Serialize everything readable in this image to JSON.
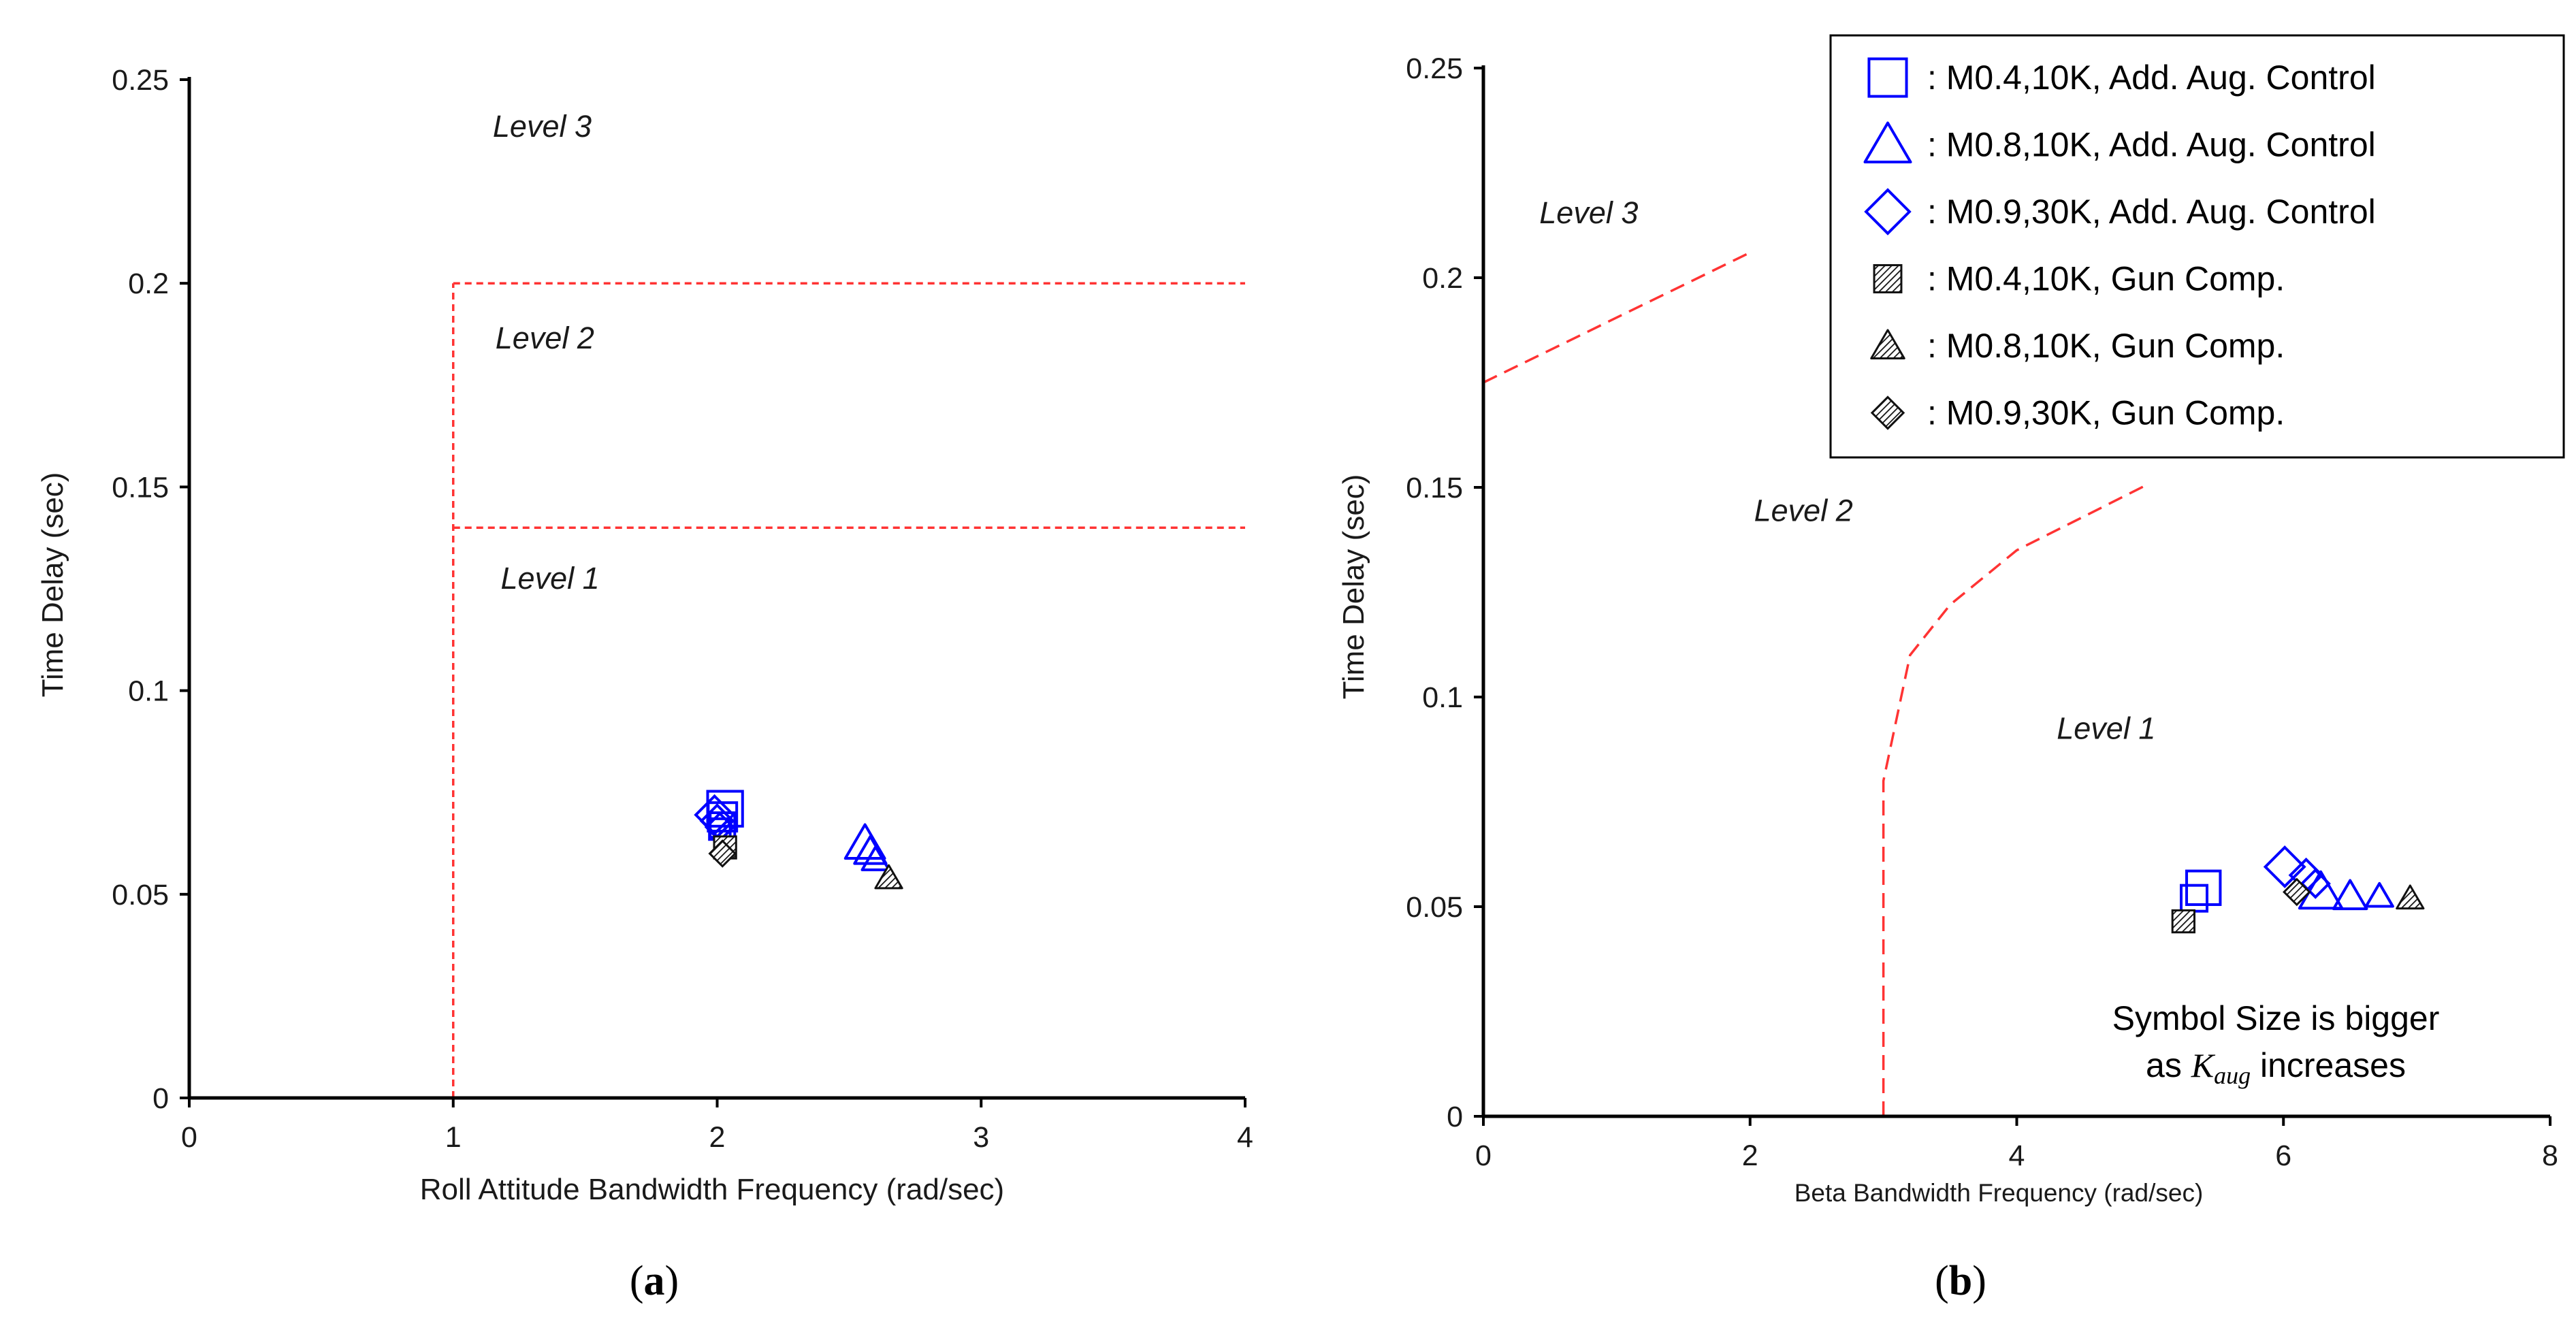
{
  "colors": {
    "aug": "#0000ff",
    "gun": "#111111",
    "boundary": "#ff3333",
    "axis": "#000000"
  },
  "chart_data": [
    {
      "type": "scatter",
      "panel": "a",
      "caption_open": "(",
      "caption_label": "a",
      "caption_close": ")",
      "xlabel": "Roll Attitude Bandwidth Frequency (rad/sec)",
      "ylabel": "Time Delay (sec)",
      "xlim": [
        0,
        4
      ],
      "ylim": [
        0,
        0.25
      ],
      "xticks": [
        0,
        1,
        2,
        3,
        4
      ],
      "xtick_labels": [
        "0",
        "1",
        "2",
        "3",
        "4"
      ],
      "yticks": [
        0,
        0.05,
        0.1,
        0.15,
        0.2,
        0.25
      ],
      "ytick_labels": [
        "0",
        "0.05",
        "0.1",
        "0.15",
        "0.2",
        "0.25"
      ],
      "boundaries": [
        {
          "name": "level-boundary-vertical",
          "points": [
            [
              1,
              0
            ],
            [
              1,
              0.2
            ]
          ]
        },
        {
          "name": "level-2-3-boundary",
          "points": [
            [
              1,
              0.2
            ],
            [
              4,
              0.2
            ]
          ]
        },
        {
          "name": "level-1-2-boundary",
          "points": [
            [
              1,
              0.14
            ],
            [
              4,
              0.14
            ]
          ]
        }
      ],
      "level_labels": [
        {
          "text": "Level 3",
          "x": 1.15,
          "y": 0.236
        },
        {
          "text": "Level 2",
          "x": 1.16,
          "y": 0.184
        },
        {
          "text": "Level 1",
          "x": 1.18,
          "y": 0.125
        }
      ],
      "series": [
        {
          "name": "M0.4,10K, Add. Aug. Control",
          "marker": "square",
          "style": "aug",
          "points": [
            [
              2.03,
              0.071,
              1.35
            ],
            [
              2.02,
              0.069,
              1.1
            ],
            [
              2.02,
              0.067,
              0.95
            ],
            [
              2.01,
              0.066,
              0.8
            ]
          ]
        },
        {
          "name": "M0.8,10K, Add. Aug. Control",
          "marker": "triangle",
          "style": "aug",
          "points": [
            [
              2.56,
              0.0625,
              1.25
            ],
            [
              2.58,
              0.0605,
              1.0
            ],
            [
              2.6,
              0.0585,
              0.85
            ]
          ]
        },
        {
          "name": "M0.9,30K, Add. Aug. Control",
          "marker": "diamond",
          "style": "aug",
          "points": [
            [
              1.99,
              0.0695,
              1.25
            ],
            [
              2.0,
              0.068,
              1.05
            ],
            [
              2.01,
              0.0665,
              0.9
            ]
          ]
        },
        {
          "name": "M0.4,10K, Gun Comp.",
          "marker": "square",
          "style": "gun",
          "points": [
            [
              2.03,
              0.0615,
              0.85
            ]
          ]
        },
        {
          "name": "M0.8,10K, Gun Comp.",
          "marker": "triangle",
          "style": "gun",
          "points": [
            [
              2.65,
              0.054,
              0.85
            ]
          ]
        },
        {
          "name": "M0.9,30K, Gun Comp.",
          "marker": "diamond",
          "style": "gun",
          "points": [
            [
              2.02,
              0.06,
              0.85
            ]
          ]
        }
      ]
    },
    {
      "type": "scatter",
      "panel": "b",
      "caption_open": "(",
      "caption_label": "b",
      "caption_close": ")",
      "xlabel": "Beta Bandwidth Frequency (rad/sec)",
      "ylabel": "Time Delay (sec)",
      "xlim": [
        0,
        8
      ],
      "ylim": [
        0,
        0.25
      ],
      "xticks": [
        0,
        2,
        4,
        6,
        8
      ],
      "xtick_labels": [
        "0",
        "2",
        "4",
        "6",
        "8"
      ],
      "yticks": [
        0,
        0.05,
        0.1,
        0.15,
        0.2,
        0.25
      ],
      "ytick_labels": [
        "0",
        "0.05",
        "0.1",
        "0.15",
        "0.2",
        "0.25"
      ],
      "boundaries": [
        {
          "name": "level-2-3-boundary",
          "points": [
            [
              0,
              0.175
            ],
            [
              2,
              0.206
            ]
          ]
        },
        {
          "name": "level-1-2-boundary",
          "points": [
            [
              3,
              0
            ],
            [
              3,
              0.08
            ],
            [
              3.2,
              0.11
            ],
            [
              3.5,
              0.122
            ],
            [
              4,
              0.135
            ],
            [
              5,
              0.151
            ]
          ]
        }
      ],
      "level_labels": [
        {
          "text": "Level 3",
          "x": 0.42,
          "y": 0.213
        },
        {
          "text": "Level 2",
          "x": 2.03,
          "y": 0.142
        },
        {
          "text": "Level 1",
          "x": 4.3,
          "y": 0.09
        }
      ],
      "series": [
        {
          "name": "M0.4,10K, Add. Aug. Control",
          "marker": "square",
          "style": "aug",
          "points": [
            [
              5.4,
              0.0545,
              1.3
            ],
            [
              5.33,
              0.052,
              1.0
            ]
          ]
        },
        {
          "name": "M0.8,10K, Add. Aug. Control",
          "marker": "triangle",
          "style": "aug",
          "points": [
            [
              6.28,
              0.0535,
              1.35
            ],
            [
              6.5,
              0.0525,
              1.05
            ],
            [
              6.72,
              0.0525,
              0.85
            ]
          ]
        },
        {
          "name": "M0.9,30K, Add. Aug. Control",
          "marker": "diamond",
          "style": "aug",
          "points": [
            [
              6.01,
              0.0595,
              1.3
            ],
            [
              6.17,
              0.0575,
              1.05
            ],
            [
              6.24,
              0.0555,
              0.9
            ]
          ]
        },
        {
          "name": "M0.4,10K, Gun Comp.",
          "marker": "square",
          "style": "gun",
          "points": [
            [
              5.25,
              0.0465,
              0.85
            ]
          ]
        },
        {
          "name": "M0.8,10K, Gun Comp.",
          "marker": "triangle",
          "style": "gun",
          "points": [
            [
              6.95,
              0.052,
              0.85
            ]
          ]
        },
        {
          "name": "M0.9,30K, Gun Comp.",
          "marker": "diamond",
          "style": "gun",
          "points": [
            [
              6.1,
              0.0535,
              0.85
            ]
          ]
        }
      ],
      "legend": {
        "position": "top-right",
        "entries": [
          {
            "marker": "square",
            "style": "aug",
            "label": ": M0.4,10K, Add. Aug. Control"
          },
          {
            "marker": "triangle",
            "style": "aug",
            "label": ": M0.8,10K, Add. Aug. Control"
          },
          {
            "marker": "diamond",
            "style": "aug",
            "label": ": M0.9,30K, Add. Aug. Control"
          },
          {
            "marker": "square",
            "style": "gun",
            "label": ": M0.4,10K, Gun Comp."
          },
          {
            "marker": "triangle",
            "style": "gun",
            "label": ": M0.8,10K, Gun Comp."
          },
          {
            "marker": "diamond",
            "style": "gun",
            "label": ": M0.9,30K, Gun Comp."
          }
        ]
      },
      "note": {
        "line1": "Symbol Size is bigger",
        "line2_prefix": "as ",
        "line2_symbol": "K",
        "line2_subscript": "aug",
        "line2_suffix": " increases"
      }
    }
  ]
}
